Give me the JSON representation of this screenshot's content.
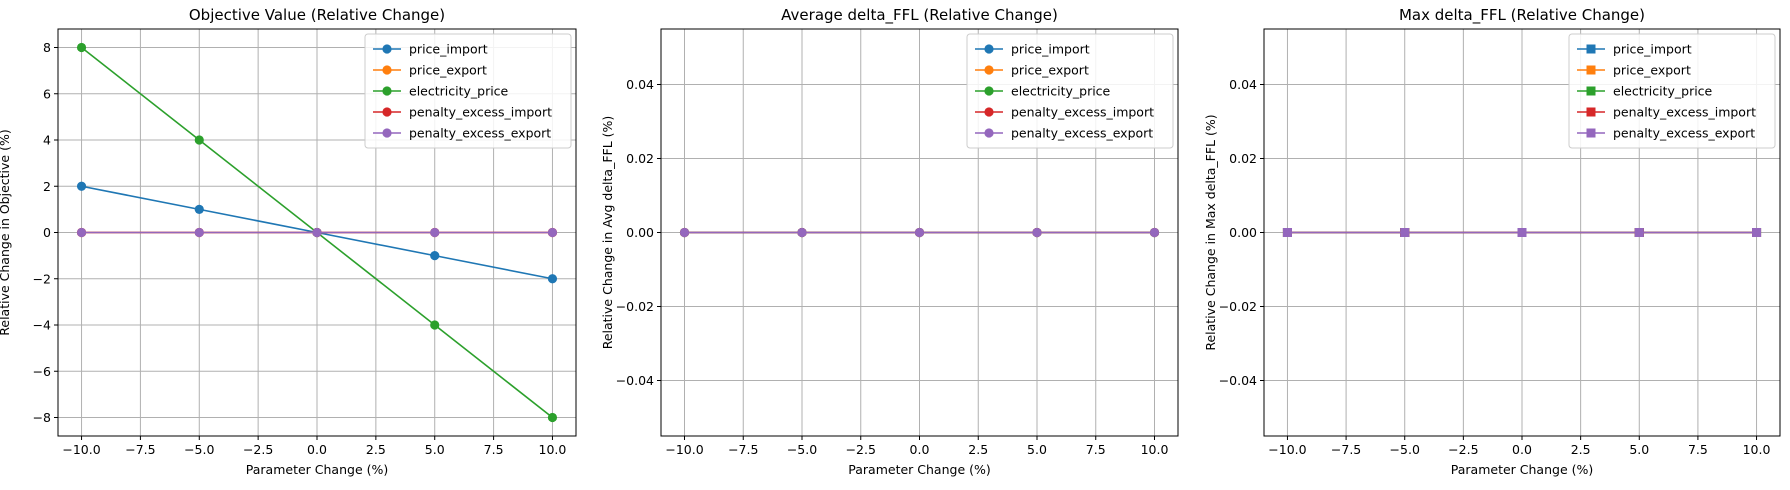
{
  "colors": {
    "price_import": "#1f77b4",
    "price_export": "#ff7f0e",
    "electricity_price": "#2ca02c",
    "penalty_excess_import": "#d62728",
    "penalty_excess_export": "#9467bd",
    "grid": "#b0b0b0"
  },
  "chart_data": [
    {
      "type": "line",
      "title": "Objective Value (Relative Change)",
      "xlabel": "Parameter Change (%)",
      "ylabel": "Relative Change in Objective (%)",
      "x": [
        -10,
        -5,
        0,
        5,
        10
      ],
      "xlim": [
        -11,
        11
      ],
      "ylim": [
        -8.8,
        8.8
      ],
      "xticks": [
        -10,
        -7.5,
        -5,
        -2.5,
        0,
        2.5,
        5,
        7.5,
        10
      ],
      "xticklabels": [
        "−10.0",
        "−7.5",
        "−5.0",
        "−2.5",
        "0.0",
        "2.5",
        "5.0",
        "7.5",
        "10.0"
      ],
      "yticks": [
        -8,
        -6,
        -4,
        -2,
        0,
        2,
        4,
        6,
        8
      ],
      "yticklabels": [
        "−8",
        "−6",
        "−4",
        "−2",
        "0",
        "2",
        "4",
        "6",
        "8"
      ],
      "grid": true,
      "legend_position": "top-right",
      "marker": "circle",
      "series": [
        {
          "name": "price_import",
          "values": [
            2,
            1,
            0,
            -1,
            -2
          ]
        },
        {
          "name": "price_export",
          "values": [
            0,
            0,
            0,
            0,
            0
          ]
        },
        {
          "name": "electricity_price",
          "values": [
            8,
            4,
            0,
            -4,
            -8
          ]
        },
        {
          "name": "penalty_excess_import",
          "values": [
            0,
            0,
            0,
            0,
            0
          ]
        },
        {
          "name": "penalty_excess_export",
          "values": [
            0,
            0,
            0,
            0,
            0
          ]
        }
      ]
    },
    {
      "type": "line",
      "title": "Average delta_FFL (Relative Change)",
      "xlabel": "Parameter Change (%)",
      "ylabel": "Relative Change in Avg delta_FFL (%)",
      "x": [
        -10,
        -5,
        0,
        5,
        10
      ],
      "xlim": [
        -11,
        11
      ],
      "ylim": [
        -0.055,
        0.055
      ],
      "xticks": [
        -10,
        -7.5,
        -5,
        -2.5,
        0,
        2.5,
        5,
        7.5,
        10
      ],
      "xticklabels": [
        "−10.0",
        "−7.5",
        "−5.0",
        "−2.5",
        "0.0",
        "2.5",
        "5.0",
        "7.5",
        "10.0"
      ],
      "yticks": [
        -0.04,
        -0.02,
        0,
        0.02,
        0.04
      ],
      "yticklabels": [
        "−0.04",
        "−0.02",
        "0.00",
        "0.02",
        "0.04"
      ],
      "grid": true,
      "legend_position": "top-right",
      "marker": "circle",
      "series": [
        {
          "name": "price_import",
          "values": [
            0,
            0,
            0,
            0,
            0
          ]
        },
        {
          "name": "price_export",
          "values": [
            0,
            0,
            0,
            0,
            0
          ]
        },
        {
          "name": "electricity_price",
          "values": [
            0,
            0,
            0,
            0,
            0
          ]
        },
        {
          "name": "penalty_excess_import",
          "values": [
            0,
            0,
            0,
            0,
            0
          ]
        },
        {
          "name": "penalty_excess_export",
          "values": [
            0,
            0,
            0,
            0,
            0
          ]
        }
      ]
    },
    {
      "type": "line",
      "title": "Max delta_FFL (Relative Change)",
      "xlabel": "Parameter Change (%)",
      "ylabel": "Relative Change in Max delta_FFL (%)",
      "x": [
        -10,
        -5,
        0,
        5,
        10
      ],
      "xlim": [
        -11,
        11
      ],
      "ylim": [
        -0.055,
        0.055
      ],
      "xticks": [
        -10,
        -7.5,
        -5,
        -2.5,
        0,
        2.5,
        5,
        7.5,
        10
      ],
      "xticklabels": [
        "−10.0",
        "−7.5",
        "−5.0",
        "−2.5",
        "0.0",
        "2.5",
        "5.0",
        "7.5",
        "10.0"
      ],
      "yticks": [
        -0.04,
        -0.02,
        0,
        0.02,
        0.04
      ],
      "yticklabels": [
        "−0.04",
        "−0.02",
        "0.00",
        "0.02",
        "0.04"
      ],
      "grid": true,
      "legend_position": "top-right",
      "marker": "square",
      "series": [
        {
          "name": "price_import",
          "values": [
            0,
            0,
            0,
            0,
            0
          ]
        },
        {
          "name": "price_export",
          "values": [
            0,
            0,
            0,
            0,
            0
          ]
        },
        {
          "name": "electricity_price",
          "values": [
            0,
            0,
            0,
            0,
            0
          ]
        },
        {
          "name": "penalty_excess_import",
          "values": [
            0,
            0,
            0,
            0,
            0
          ]
        },
        {
          "name": "penalty_excess_export",
          "values": [
            0,
            0,
            0,
            0,
            0
          ]
        }
      ]
    }
  ]
}
